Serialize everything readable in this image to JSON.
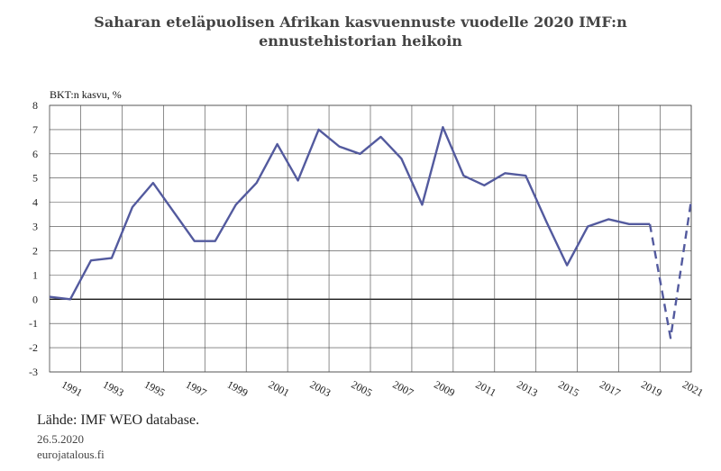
{
  "colors": {
    "line": "#535a9e",
    "grid": "#444444",
    "background": "#ffffff"
  },
  "chart_data": {
    "type": "line",
    "title_lines": [
      "Saharan eteläpuolisen Afrikan kasvuennuste vuodelle 2020  IMF:n",
      "ennustehistorian heikoin"
    ],
    "ylabel": "BKT:n kasvu, %",
    "xlabel": "",
    "ylim": [
      -3,
      8
    ],
    "xlim": [
      1990,
      2021
    ],
    "yticks": [
      -3,
      -2,
      -1,
      0,
      1,
      2,
      3,
      4,
      5,
      6,
      7,
      8
    ],
    "xticks": [
      "1991",
      "1993",
      "1995",
      "1997",
      "1999",
      "2001",
      "2003",
      "2005",
      "2007",
      "2009",
      "2011",
      "2013",
      "2015",
      "2017",
      "2019",
      "2021"
    ],
    "grid": true,
    "series": [
      {
        "style": "solid",
        "x": [
          1990,
          1991,
          1992,
          1993,
          1994,
          1995,
          1996,
          1997,
          1998,
          1999,
          2000,
          2001,
          2002,
          2003,
          2004,
          2005,
          2006,
          2007,
          2008,
          2009,
          2010,
          2011,
          2012,
          2013,
          2014,
          2015,
          2016,
          2017,
          2018,
          2019
        ],
        "values": [
          0.1,
          0.0,
          1.6,
          1.7,
          3.8,
          4.8,
          3.6,
          2.4,
          2.4,
          3.9,
          4.8,
          6.4,
          4.9,
          7.0,
          6.3,
          6.0,
          6.7,
          5.8,
          3.9,
          7.1,
          5.1,
          4.7,
          5.2,
          5.1,
          3.2,
          1.4,
          3.0,
          3.3,
          3.1,
          3.1
        ]
      },
      {
        "style": "dashed",
        "x": [
          2019,
          2020,
          2021
        ],
        "values": [
          3.1,
          -1.6,
          4.1
        ]
      }
    ]
  },
  "footer": {
    "source": "Lähde: IMF WEO database.",
    "date": "26.5.2020",
    "site": "eurojatalous.fi"
  }
}
